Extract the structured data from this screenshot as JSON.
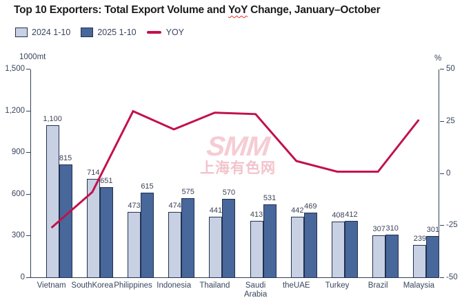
{
  "title": {
    "prefix": "Top 10 Exporters: Total Export Volume and ",
    "highlight": "YoY",
    "suffix": " Change, January–October"
  },
  "legend": [
    {
      "label": "2024 1-10",
      "marker": "square",
      "color": "#C7D1E3"
    },
    {
      "label": "2025 1-10",
      "marker": "square",
      "color": "#48679B"
    },
    {
      "label": "YOY",
      "marker": "line",
      "color": "#C3114C"
    }
  ],
  "axes": {
    "left_unit": "1000mt",
    "right_unit": "%",
    "left_ticks": [
      "1,500",
      "1,200",
      "900",
      "600",
      "300",
      "0"
    ],
    "left_tick_values": [
      1500,
      1200,
      900,
      600,
      300,
      0
    ],
    "right_ticks": [
      "50",
      "25",
      "0",
      "-25",
      "-50"
    ],
    "right_tick_values": [
      50,
      25,
      0,
      -25,
      -50
    ]
  },
  "chart_data": {
    "type": "bar+line",
    "title": "Top 10 Exporters: Total Export Volume and YoY Change, January–October",
    "categories": [
      "Vietnam",
      "SouthKorea",
      "Philippines",
      "Indonesia",
      "Thailand",
      "Saudi Arabia",
      "theUAE",
      "Turkey",
      "Brazil",
      "Malaysia"
    ],
    "series": [
      {
        "name": "2024 1-10",
        "type": "bar",
        "axis": "left",
        "color": "#C7D1E3",
        "values": [
          1100,
          714,
          473,
          474,
          441,
          413,
          442,
          408,
          307,
          239
        ],
        "labels": [
          "1,100",
          "714",
          "473",
          "474",
          "441",
          "413",
          "442",
          "408",
          "307",
          "239"
        ]
      },
      {
        "name": "2025 1-10",
        "type": "bar",
        "axis": "left",
        "color": "#48679B",
        "values": [
          815,
          651,
          615,
          575,
          570,
          531,
          469,
          412,
          310,
          301
        ],
        "labels": [
          "815",
          "651",
          "615",
          "575",
          "570",
          "531",
          "469",
          "412",
          "310",
          "301"
        ]
      },
      {
        "name": "YOY",
        "type": "line",
        "axis": "right",
        "color": "#C3114C",
        "values": [
          -25.9,
          -8.8,
          30.0,
          21.3,
          29.3,
          28.6,
          6.1,
          1.0,
          1.0,
          25.9
        ]
      }
    ],
    "ylabel_left": "1000mt",
    "ylabel_right": "%",
    "ylim_left": [
      0,
      1500
    ],
    "ylim_right": [
      -50,
      50
    ],
    "grid": false,
    "legend_position": "top-left"
  },
  "watermark": {
    "line1": "SMM",
    "line2": "上海有色网"
  }
}
